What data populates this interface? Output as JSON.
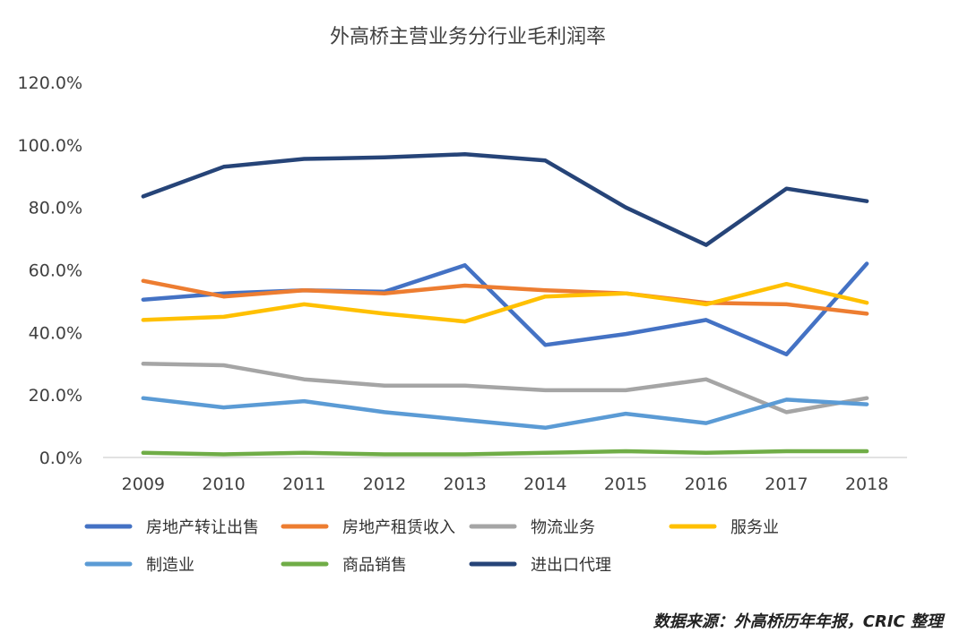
{
  "chart_data": {
    "type": "line",
    "title": "外高桥主营业务分行业毛利润率",
    "xlabel": "",
    "ylabel": "",
    "x": [
      "2009",
      "2010",
      "2011",
      "2012",
      "2013",
      "2014",
      "2015",
      "2016",
      "2017",
      "2018"
    ],
    "ylim": [
      0,
      120
    ],
    "yticks": [
      "0.0%",
      "20.0%",
      "40.0%",
      "60.0%",
      "80.0%",
      "100.0%",
      "120.0%"
    ],
    "grid": false,
    "legend_position": "bottom",
    "series": [
      {
        "name": "房地产转让出售",
        "color": "#4472C4",
        "values": [
          50.5,
          52.5,
          53.5,
          53.0,
          61.5,
          36.0,
          39.5,
          44.0,
          33.0,
          62.0
        ]
      },
      {
        "name": "房地产租赁收入",
        "color": "#ED7D31",
        "values": [
          56.5,
          51.5,
          53.5,
          52.5,
          55.0,
          53.5,
          52.5,
          49.5,
          49.0,
          46.0
        ]
      },
      {
        "name": "物流业务",
        "color": "#A5A5A5",
        "values": [
          30.0,
          29.5,
          25.0,
          23.0,
          23.0,
          21.5,
          21.5,
          25.0,
          14.5,
          19.0
        ]
      },
      {
        "name": "服务业",
        "color": "#FFC000",
        "values": [
          44.0,
          45.0,
          49.0,
          46.0,
          43.5,
          51.5,
          52.5,
          49.0,
          55.5,
          49.5
        ]
      },
      {
        "name": "制造业",
        "color": "#5B9BD5",
        "values": [
          19.0,
          16.0,
          18.0,
          14.5,
          12.0,
          9.5,
          14.0,
          11.0,
          18.5,
          17.0
        ]
      },
      {
        "name": "商品销售",
        "color": "#70AD47",
        "values": [
          1.5,
          1.0,
          1.5,
          1.0,
          1.0,
          1.5,
          2.0,
          1.5,
          2.0,
          2.0
        ]
      },
      {
        "name": "进出口代理",
        "color": "#264478",
        "values": [
          83.5,
          93.0,
          95.5,
          96.0,
          97.0,
          95.0,
          80.0,
          68.0,
          86.0,
          82.0
        ]
      }
    ]
  },
  "source": "数据来源：外高桥历年年报，CRIC 整理"
}
